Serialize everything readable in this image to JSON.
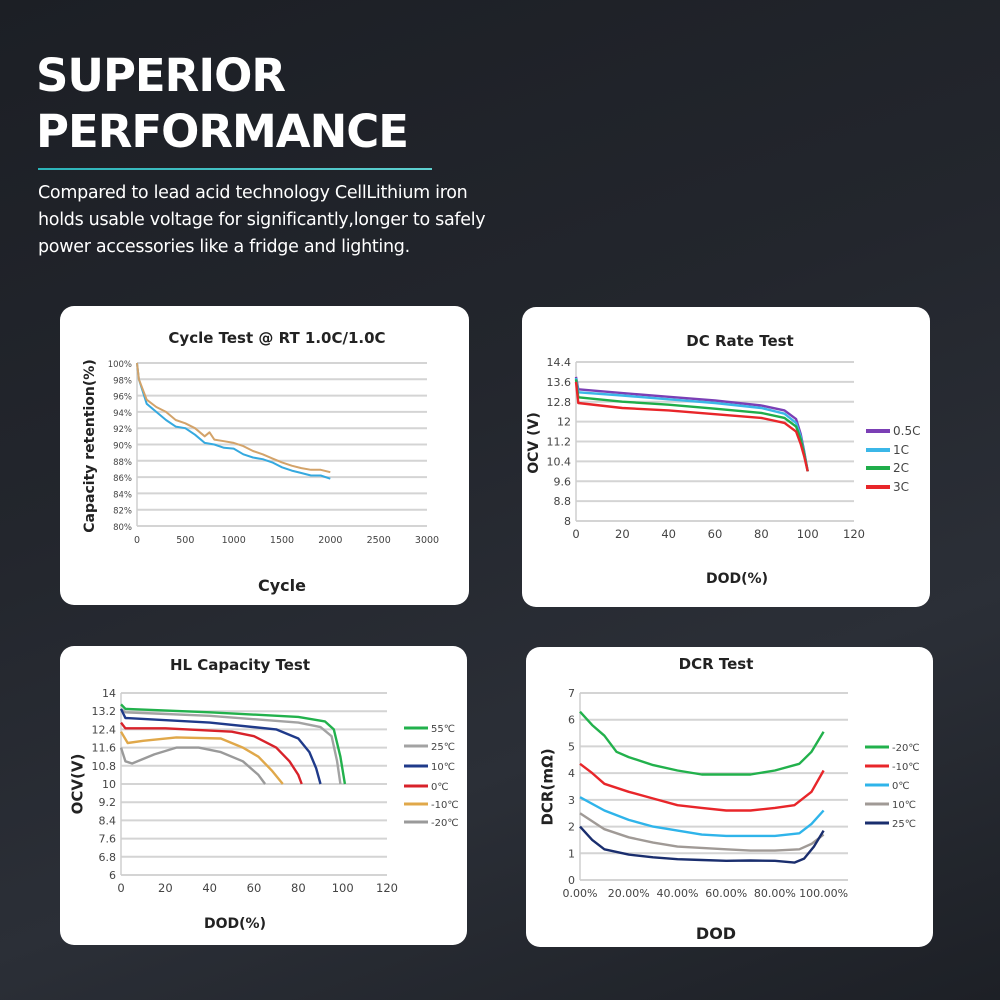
{
  "header": {
    "title_line1": "SUPERIOR",
    "title_line2": "PERFORMANCE",
    "description": "Compared to lead acid technology CellLithium iron holds usable voltage for significantly,longer to safely power accessories like a fridge and lighting."
  },
  "chart_data": [
    {
      "type": "line",
      "title": "Cycle Test @ RT 1.0C/1.0C",
      "xlabel": "Cycle",
      "ylabel": "Capacity retention(%)",
      "xlim": [
        0,
        3000
      ],
      "ylim": [
        80,
        100
      ],
      "xticks": [
        "0",
        "500",
        "1000",
        "1500",
        "2000",
        "2500",
        "3000"
      ],
      "yticks": [
        "80%",
        "82%",
        "84%",
        "86%",
        "88%",
        "90%",
        "92%",
        "94%",
        "96%",
        "98%",
        "100%"
      ],
      "grid": true,
      "legend": "none",
      "series": [
        {
          "color": "#35a9df",
          "points": [
            [
              0,
              100
            ],
            [
              20,
              98
            ],
            [
              100,
              95
            ],
            [
              200,
              94
            ],
            [
              300,
              93
            ],
            [
              400,
              92.2
            ],
            [
              500,
              92
            ],
            [
              600,
              91.2
            ],
            [
              700,
              90.2
            ],
            [
              800,
              90
            ],
            [
              900,
              89.6
            ],
            [
              1000,
              89.5
            ],
            [
              1100,
              88.8
            ],
            [
              1200,
              88.4
            ],
            [
              1300,
              88.2
            ],
            [
              1400,
              87.8
            ],
            [
              1500,
              87.2
            ],
            [
              1600,
              86.8
            ],
            [
              1700,
              86.5
            ],
            [
              1800,
              86.2
            ],
            [
              1900,
              86.2
            ],
            [
              2000,
              85.8
            ]
          ]
        },
        {
          "color": "#d3a36a",
          "points": [
            [
              0,
              100
            ],
            [
              20,
              98
            ],
            [
              100,
              95.5
            ],
            [
              200,
              94.6
            ],
            [
              300,
              94
            ],
            [
              400,
              93
            ],
            [
              500,
              92.6
            ],
            [
              600,
              92
            ],
            [
              700,
              91
            ],
            [
              750,
              91.5
            ],
            [
              800,
              90.6
            ],
            [
              900,
              90.4
            ],
            [
              1000,
              90.2
            ],
            [
              1100,
              89.8
            ],
            [
              1200,
              89.2
            ],
            [
              1300,
              88.8
            ],
            [
              1400,
              88.3
            ],
            [
              1500,
              87.8
            ],
            [
              1600,
              87.4
            ],
            [
              1700,
              87.1
            ],
            [
              1800,
              86.9
            ],
            [
              1900,
              86.9
            ],
            [
              2000,
              86.6
            ]
          ]
        }
      ]
    },
    {
      "type": "line",
      "title": "DC Rate Test",
      "xlabel": "DOD(%)",
      "ylabel": "OCV (V)",
      "xlim": [
        0,
        120
      ],
      "ylim": [
        8,
        14.4
      ],
      "xticks": [
        "0",
        "20",
        "40",
        "60",
        "80",
        "100",
        "120"
      ],
      "yticks": [
        "8",
        "8.8",
        "9.6",
        "10.4",
        "11.2",
        "12",
        "12.8",
        "13.6",
        "14.4"
      ],
      "grid": true,
      "legend": "right",
      "series": [
        {
          "name": "0.5C",
          "color": "#7b3fb5",
          "points": [
            [
              0,
              13.8
            ],
            [
              1,
              13.3
            ],
            [
              20,
              13.15
            ],
            [
              40,
              13.0
            ],
            [
              60,
              12.85
            ],
            [
              80,
              12.65
            ],
            [
              90,
              12.45
            ],
            [
              95,
              12.1
            ],
            [
              97,
              11.5
            ],
            [
              98.5,
              10.8
            ],
            [
              100,
              10.0
            ]
          ]
        },
        {
          "name": "1C",
          "color": "#3bb7e8",
          "points": [
            [
              0,
              13.75
            ],
            [
              1,
              13.18
            ],
            [
              20,
              13.05
            ],
            [
              40,
              12.9
            ],
            [
              60,
              12.75
            ],
            [
              80,
              12.55
            ],
            [
              90,
              12.32
            ],
            [
              95,
              11.95
            ],
            [
              97,
              11.4
            ],
            [
              98.5,
              10.75
            ],
            [
              100,
              10.0
            ]
          ]
        },
        {
          "name": "2C",
          "color": "#1fad4a",
          "points": [
            [
              0,
              13.7
            ],
            [
              1,
              12.98
            ],
            [
              20,
              12.8
            ],
            [
              40,
              12.68
            ],
            [
              60,
              12.52
            ],
            [
              80,
              12.35
            ],
            [
              90,
              12.15
            ],
            [
              95,
              11.8
            ],
            [
              97,
              11.3
            ],
            [
              98.5,
              10.7
            ],
            [
              100,
              10.0
            ]
          ]
        },
        {
          "name": "3C",
          "color": "#e8262a",
          "points": [
            [
              0,
              13.6
            ],
            [
              1,
              12.75
            ],
            [
              20,
              12.55
            ],
            [
              40,
              12.45
            ],
            [
              60,
              12.3
            ],
            [
              80,
              12.15
            ],
            [
              90,
              11.95
            ],
            [
              95,
              11.6
            ],
            [
              97,
              11.1
            ],
            [
              98.5,
              10.6
            ],
            [
              100,
              10.0
            ]
          ]
        }
      ]
    },
    {
      "type": "line",
      "title": "HL Capacity Test",
      "xlabel": "DOD(%)",
      "ylabel": "OCV(V)",
      "xlim": [
        0,
        120
      ],
      "ylim": [
        6,
        14
      ],
      "xticks": [
        "0",
        "20",
        "40",
        "60",
        "80",
        "100",
        "120"
      ],
      "yticks": [
        "6",
        "6.8",
        "7.6",
        "8.4",
        "9.2",
        "10",
        "10.8",
        "11.6",
        "12.4",
        "13.2",
        "14"
      ],
      "grid": true,
      "legend": "right",
      "series": [
        {
          "name": "55℃",
          "color": "#22b14c",
          "points": [
            [
              0,
              13.5
            ],
            [
              2,
              13.3
            ],
            [
              40,
              13.15
            ],
            [
              80,
              12.95
            ],
            [
              92,
              12.75
            ],
            [
              96,
              12.4
            ],
            [
              99,
              11.2
            ],
            [
              101,
              10
            ]
          ]
        },
        {
          "name": "25℃",
          "color": "#a3a3a3",
          "points": [
            [
              0,
              13.3
            ],
            [
              2,
              13.15
            ],
            [
              40,
              13.0
            ],
            [
              80,
              12.7
            ],
            [
              90,
              12.5
            ],
            [
              95,
              12.1
            ],
            [
              97.5,
              11.0
            ],
            [
              99,
              10
            ]
          ]
        },
        {
          "name": "10℃",
          "color": "#1f3a8a",
          "points": [
            [
              0,
              13.3
            ],
            [
              2,
              12.9
            ],
            [
              40,
              12.7
            ],
            [
              70,
              12.4
            ],
            [
              80,
              12.0
            ],
            [
              85,
              11.4
            ],
            [
              88,
              10.7
            ],
            [
              90,
              10
            ]
          ]
        },
        {
          "name": "0℃",
          "color": "#d8222a",
          "points": [
            [
              0,
              12.7
            ],
            [
              2,
              12.45
            ],
            [
              20,
              12.45
            ],
            [
              50,
              12.3
            ],
            [
              60,
              12.1
            ],
            [
              70,
              11.6
            ],
            [
              76,
              11.0
            ],
            [
              80,
              10.4
            ],
            [
              81.5,
              10
            ]
          ]
        },
        {
          "name": "-10℃",
          "color": "#e0a84a",
          "points": [
            [
              0,
              12.3
            ],
            [
              3,
              11.8
            ],
            [
              10,
              11.9
            ],
            [
              25,
              12.05
            ],
            [
              45,
              12.0
            ],
            [
              55,
              11.6
            ],
            [
              62,
              11.2
            ],
            [
              68,
              10.6
            ],
            [
              73,
              10
            ]
          ]
        },
        {
          "name": "-20℃",
          "color": "#9a9a9a",
          "points": [
            [
              0,
              11.6
            ],
            [
              2,
              11.0
            ],
            [
              5,
              10.9
            ],
            [
              15,
              11.3
            ],
            [
              25,
              11.6
            ],
            [
              35,
              11.6
            ],
            [
              45,
              11.4
            ],
            [
              55,
              11.0
            ],
            [
              62,
              10.4
            ],
            [
              65,
              10
            ]
          ]
        }
      ]
    },
    {
      "type": "line",
      "title": "DCR Test",
      "xlabel": "DOD",
      "ylabel": "DCR(mΩ)",
      "xlim": [
        0,
        110
      ],
      "ylim": [
        0,
        7
      ],
      "xticks": [
        "0.00%",
        "20.00%",
        "40.00%",
        "60.00%",
        "80.00%",
        "100.00%"
      ],
      "yticks": [
        "0",
        "1",
        "2",
        "3",
        "4",
        "5",
        "6",
        "7"
      ],
      "grid": true,
      "legend": "right",
      "series": [
        {
          "name": "-20℃",
          "color": "#22b14c",
          "points": [
            [
              0,
              6.3
            ],
            [
              5,
              5.8
            ],
            [
              10,
              5.4
            ],
            [
              15,
              4.8
            ],
            [
              20,
              4.6
            ],
            [
              30,
              4.3
            ],
            [
              40,
              4.1
            ],
            [
              50,
              3.95
            ],
            [
              60,
              3.95
            ],
            [
              70,
              3.95
            ],
            [
              80,
              4.1
            ],
            [
              90,
              4.35
            ],
            [
              95,
              4.8
            ],
            [
              100,
              5.55
            ]
          ]
        },
        {
          "name": "-10℃",
          "color": "#e8262a",
          "points": [
            [
              0,
              4.35
            ],
            [
              5,
              4.0
            ],
            [
              10,
              3.6
            ],
            [
              20,
              3.3
            ],
            [
              30,
              3.05
            ],
            [
              40,
              2.8
            ],
            [
              50,
              2.7
            ],
            [
              60,
              2.6
            ],
            [
              70,
              2.6
            ],
            [
              80,
              2.7
            ],
            [
              88,
              2.8
            ],
            [
              95,
              3.3
            ],
            [
              100,
              4.1
            ]
          ]
        },
        {
          "name": "0℃",
          "color": "#2fb4ea",
          "points": [
            [
              0,
              3.1
            ],
            [
              10,
              2.6
            ],
            [
              20,
              2.25
            ],
            [
              30,
              2.0
            ],
            [
              40,
              1.85
            ],
            [
              50,
              1.7
            ],
            [
              60,
              1.65
            ],
            [
              70,
              1.65
            ],
            [
              80,
              1.65
            ],
            [
              90,
              1.75
            ],
            [
              95,
              2.1
            ],
            [
              100,
              2.6
            ]
          ]
        },
        {
          "name": "10℃",
          "color": "#a09a96",
          "points": [
            [
              0,
              2.5
            ],
            [
              10,
              1.9
            ],
            [
              20,
              1.6
            ],
            [
              30,
              1.4
            ],
            [
              40,
              1.25
            ],
            [
              50,
              1.2
            ],
            [
              60,
              1.15
            ],
            [
              70,
              1.1
            ],
            [
              80,
              1.1
            ],
            [
              90,
              1.15
            ],
            [
              95,
              1.35
            ],
            [
              100,
              1.7
            ]
          ]
        },
        {
          "name": "25℃",
          "color": "#1a2e6e",
          "points": [
            [
              0,
              2.0
            ],
            [
              5,
              1.5
            ],
            [
              10,
              1.15
            ],
            [
              20,
              0.95
            ],
            [
              30,
              0.85
            ],
            [
              40,
              0.78
            ],
            [
              50,
              0.75
            ],
            [
              60,
              0.72
            ],
            [
              70,
              0.73
            ],
            [
              80,
              0.72
            ],
            [
              88,
              0.65
            ],
            [
              92,
              0.8
            ],
            [
              96,
              1.25
            ],
            [
              100,
              1.85
            ]
          ]
        }
      ]
    }
  ]
}
